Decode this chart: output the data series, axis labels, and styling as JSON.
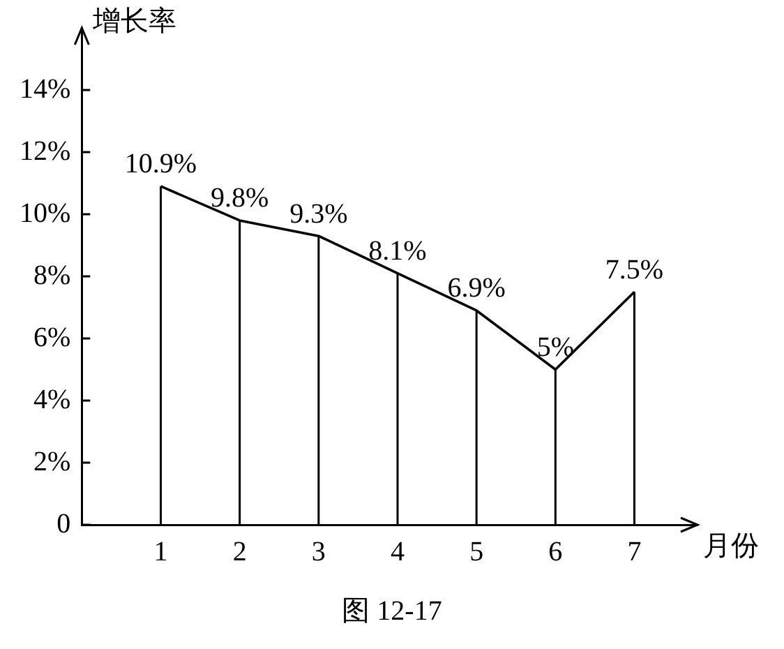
{
  "chart_data": {
    "type": "line",
    "ylabel": "增长率",
    "xlabel": "月份",
    "annotations": [
      "图 12-17"
    ],
    "x": [
      1,
      2,
      3,
      4,
      5,
      6,
      7
    ],
    "xlim": [
      0,
      7.8
    ],
    "xticks": [
      1,
      2,
      3,
      4,
      5,
      6,
      7
    ],
    "ylim": [
      0,
      16
    ],
    "yticks": [
      0,
      {
        "value": 2,
        "label": "2%"
      },
      {
        "value": 4,
        "label": "4%"
      },
      {
        "value": 6,
        "label": "6%"
      },
      {
        "value": 8,
        "label": "8%"
      },
      {
        "value": 10,
        "label": "10%"
      },
      {
        "value": 12,
        "label": "12%"
      },
      {
        "value": 14,
        "label": "14%"
      }
    ],
    "series": [
      {
        "color": "#000000",
        "values": [
          10.9,
          9.8,
          9.3,
          8.1,
          6.9,
          5,
          7.5
        ],
        "value_labels": [
          "10.9%",
          "9.8%",
          "9.3%",
          "8.1%",
          "6.9%",
          "5%",
          "7.5%"
        ]
      }
    ],
    "grid": false,
    "legend": false,
    "marker": "none",
    "line_style": "solid"
  }
}
